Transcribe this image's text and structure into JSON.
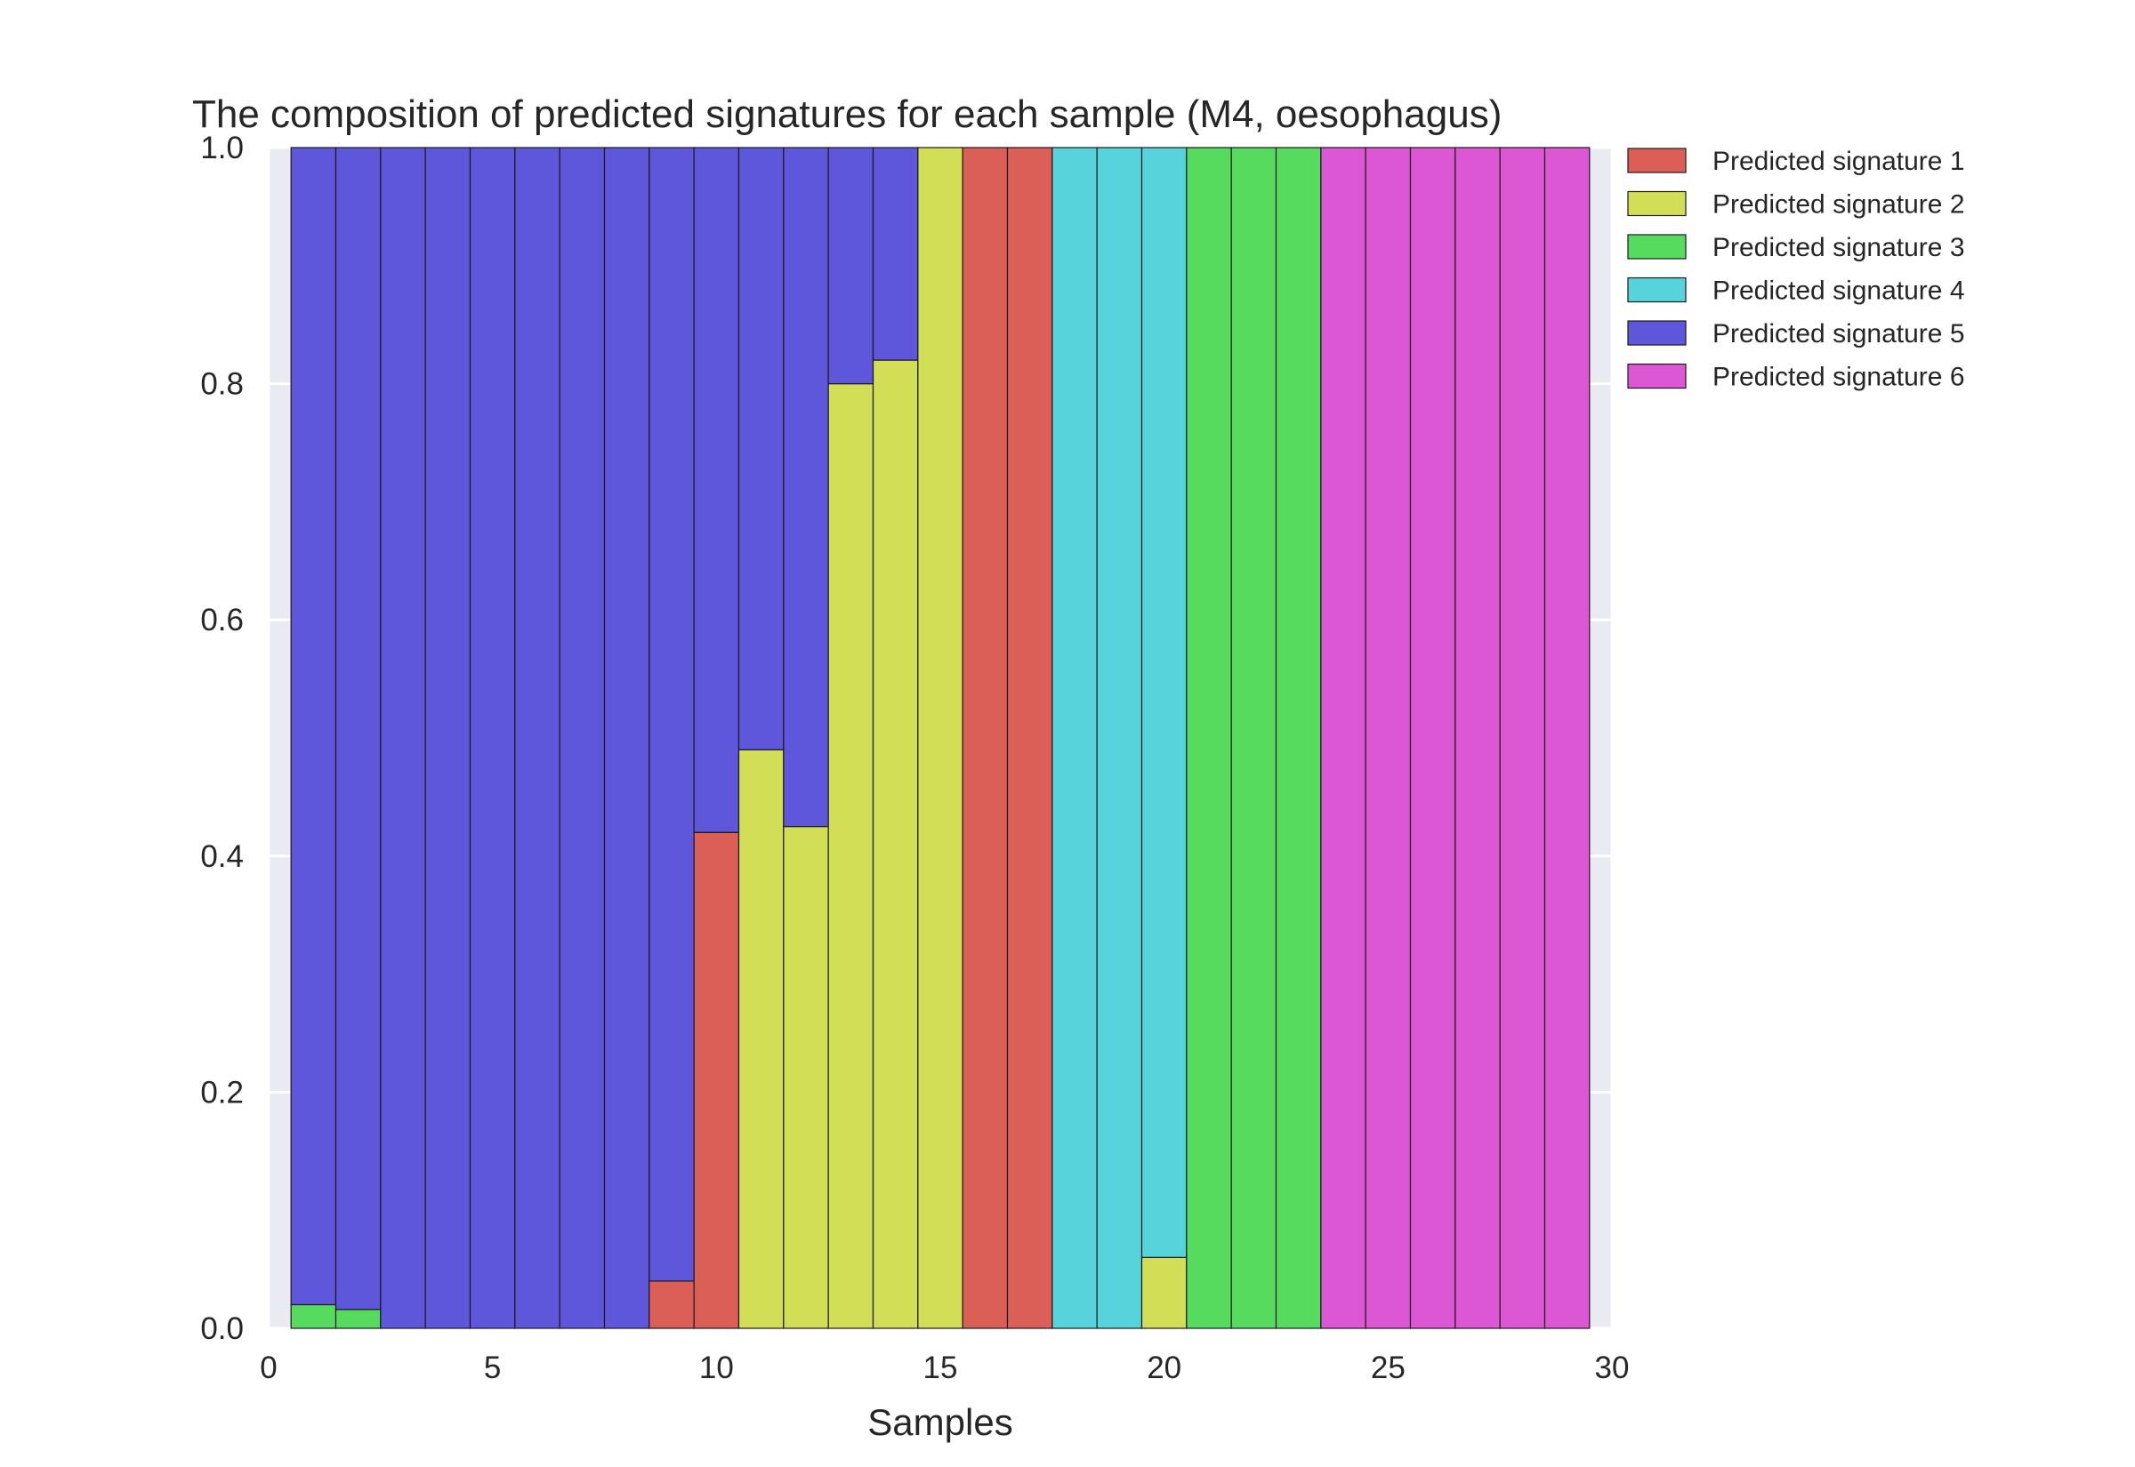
{
  "chart_data": {
    "type": "bar",
    "stacked": true,
    "title": "The composition of predicted signatures for each sample (M4, oesophagus)",
    "xlabel": "Samples",
    "ylabel": "",
    "xlim": [
      0,
      30
    ],
    "ylim": [
      0,
      1.0
    ],
    "x_ticks": [
      "0",
      "5",
      "10",
      "15",
      "20",
      "25",
      "30"
    ],
    "y_ticks": [
      "0.0",
      "0.2",
      "0.4",
      "0.6",
      "0.8",
      "1.0"
    ],
    "grid": true,
    "legend_position": "outside-top-right",
    "x": [
      1,
      2,
      3,
      4,
      5,
      6,
      7,
      8,
      9,
      10,
      11,
      12,
      13,
      14,
      15,
      16,
      17,
      18,
      19,
      20,
      21,
      22,
      23,
      24,
      25,
      26,
      27,
      28,
      29
    ],
    "series": [
      {
        "name": "Predicted signature 1",
        "color": "#db5f57",
        "values": [
          0,
          0,
          0,
          0,
          0,
          0,
          0,
          0,
          0.04,
          0.42,
          0,
          0,
          0,
          0,
          0,
          1,
          1,
          0,
          0,
          0,
          0,
          0,
          0,
          0,
          0,
          0,
          0,
          0,
          0
        ]
      },
      {
        "name": "Predicted signature 2",
        "color": "#d3de57",
        "values": [
          0,
          0,
          0,
          0,
          0,
          0,
          0,
          0,
          0,
          0,
          0.49,
          0.425,
          0.8,
          0.82,
          1,
          0,
          0,
          0,
          0,
          0.06,
          0,
          0,
          0,
          0,
          0,
          0,
          0,
          0,
          0
        ]
      },
      {
        "name": "Predicted signature 3",
        "color": "#57db5f",
        "values": [
          0.02,
          0.016,
          0,
          0,
          0,
          0,
          0,
          0,
          0,
          0,
          0,
          0,
          0,
          0,
          0,
          0,
          0,
          0,
          0,
          0,
          1,
          1,
          1,
          0,
          0,
          0,
          0,
          0,
          0
        ]
      },
      {
        "name": "Predicted signature 4",
        "color": "#57d3db",
        "values": [
          0,
          0,
          0,
          0,
          0,
          0,
          0,
          0,
          0,
          0,
          0,
          0,
          0,
          0,
          0,
          0,
          0,
          1,
          1,
          0.94,
          0,
          0,
          0,
          0,
          0,
          0,
          0,
          0,
          0
        ]
      },
      {
        "name": "Predicted signature 5",
        "color": "#5f57db",
        "values": [
          0.98,
          0.984,
          1,
          1,
          1,
          1,
          1,
          1,
          0.96,
          0.58,
          0.51,
          0.575,
          0.2,
          0.18,
          0,
          0,
          0,
          0,
          0,
          0,
          0,
          0,
          0,
          0,
          0,
          0,
          0,
          0,
          0
        ]
      },
      {
        "name": "Predicted signature 6",
        "color": "#db57d3",
        "values": [
          0,
          0,
          0,
          0,
          0,
          0,
          0,
          0,
          0,
          0,
          0,
          0,
          0,
          0,
          0,
          0,
          0,
          0,
          0,
          0,
          0,
          0,
          0,
          1,
          1,
          1,
          1,
          1,
          1
        ]
      }
    ],
    "stack_order": [
      2,
      0,
      1,
      3,
      4,
      5
    ]
  }
}
